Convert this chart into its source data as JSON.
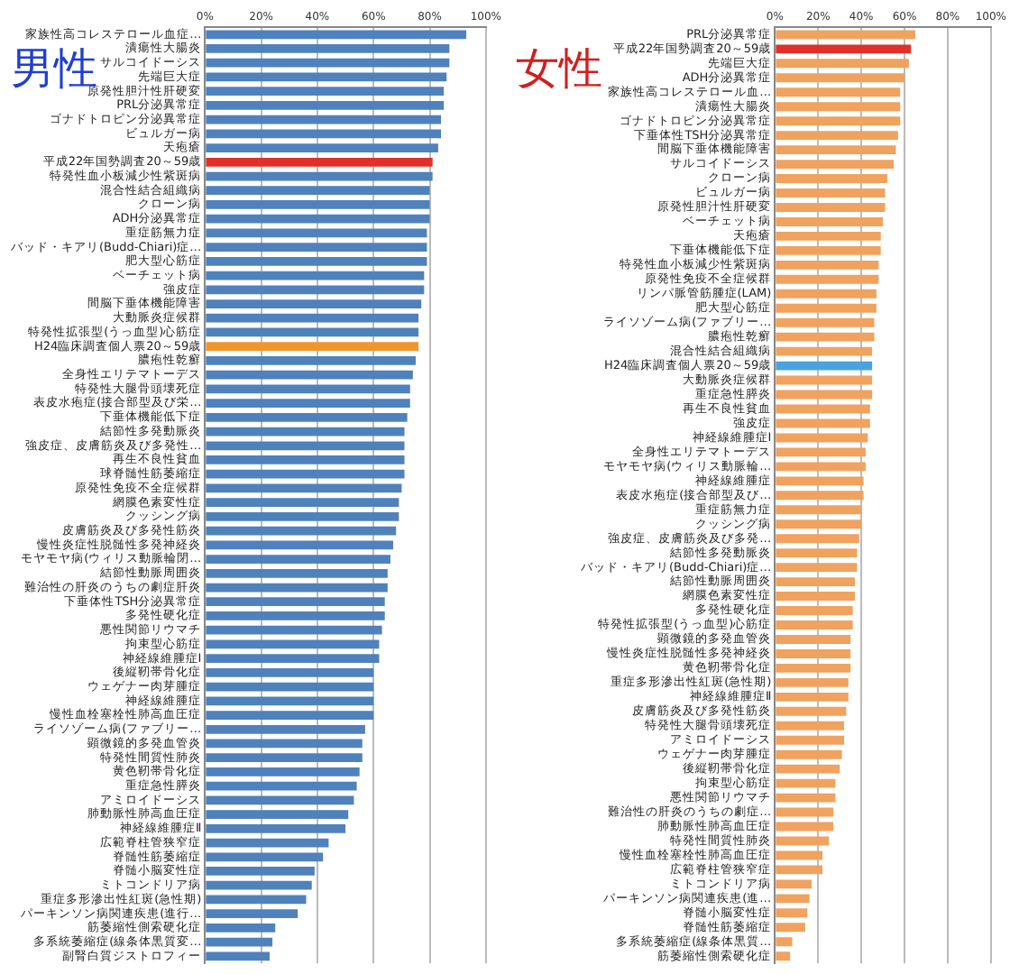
{
  "chart_data": [
    {
      "type": "bar",
      "title": "男性",
      "orientation": "horizontal",
      "legend": false,
      "grid": "x",
      "xlim": [
        0,
        100
      ],
      "xticks": [
        {
          "value": 0,
          "label": "0%"
        },
        {
          "value": 20,
          "label": "20%"
        },
        {
          "value": 40,
          "label": "40%"
        },
        {
          "value": 60,
          "label": "60%"
        },
        {
          "value": 80,
          "label": "80%"
        },
        {
          "value": 100,
          "label": "100%"
        }
      ],
      "categories": [
        "家族性高コレステロール血症…",
        "潰瘍性大腸炎",
        "サルコイドーシス",
        "先端巨大症",
        "原発性胆汁性肝硬変",
        "PRL分泌異常症",
        "ゴナドトロピン分泌異常症",
        "ビュルガー病",
        "天疱瘡",
        "平成22年国勢調査20～59歳",
        "特発性血小板減少性紫斑病",
        "混合性結合組織病",
        "クローン病",
        "ADH分泌異常症",
        "重症筋無力症",
        "バッド・キアリ(Budd-Chiari)症…",
        "肥大型心筋症",
        "ベーチェット病",
        "強皮症",
        "間脳下垂体機能障害",
        "大動脈炎症候群",
        "特発性拡張型(うっ血型)心筋症",
        "H24臨床調査個人票20～59歳",
        "膿疱性乾癬",
        "全身性エリテマトーデス",
        "特発性大腿骨頭壊死症",
        "表皮水疱症(接合部型及び栄…",
        "下垂体機能低下症",
        "結節性多発動脈炎",
        "強皮症、皮膚筋炎及び多発性…",
        "再生不良性貧血",
        "球脊髄性筋萎縮症",
        "原発性免疫不全症候群",
        "網膜色素変性症",
        "クッシング病",
        "皮膚筋炎及び多発性筋炎",
        "慢性炎症性脱髄性多発神経炎",
        "モヤモヤ病(ウィリス動脈輪閉…",
        "結節性動脈周囲炎",
        "難治性の肝炎のうちの劇症肝炎",
        "下垂体性TSH分泌異常症",
        "多発性硬化症",
        "悪性関節リウマチ",
        "拘束型心筋症",
        "神経線維腫症Ⅰ",
        "後縦靭帯骨化症",
        "ウェゲナー肉芽腫症",
        "神経線維腫症",
        "慢性血栓塞栓性肺高血圧症",
        "ライソゾーム病(ファブリー…",
        "顕微鏡的多発血管炎",
        "特発性間質性肺炎",
        "黄色靭帯骨化症",
        "重症急性膵炎",
        "アミロイドーシス",
        "肺動脈性肺高血圧症",
        "神経線維腫症Ⅱ",
        "広範脊柱管狭窄症",
        "脊髄性筋萎縮症",
        "脊髄小脳変性症",
        "ミトコンドリア病",
        "重症多形滲出性紅斑(急性期)",
        "パーキンソン病関連疾患(進行…",
        "筋萎縮性側索硬化症",
        "多系統萎縮症(線条体黒質変…",
        "副腎白質ジストロフィー"
      ],
      "values": [
        93,
        87,
        87,
        86,
        85,
        85,
        84,
        84,
        83,
        81,
        81,
        80,
        80,
        80,
        79,
        79,
        79,
        78,
        78,
        77,
        76,
        76,
        76,
        75,
        74,
        73,
        73,
        72,
        71,
        71,
        71,
        71,
        70,
        69,
        69,
        68,
        67,
        66,
        65,
        65,
        64,
        64,
        63,
        62,
        62,
        60,
        60,
        60,
        60,
        57,
        56,
        56,
        55,
        54,
        53,
        51,
        50,
        44,
        42,
        39,
        38,
        36,
        33,
        25,
        24,
        23
      ],
      "colors": [
        "#4f81bd",
        "#4f81bd",
        "#4f81bd",
        "#4f81bd",
        "#4f81bd",
        "#4f81bd",
        "#4f81bd",
        "#4f81bd",
        "#4f81bd",
        "#e0302a",
        "#4f81bd",
        "#4f81bd",
        "#4f81bd",
        "#4f81bd",
        "#4f81bd",
        "#4f81bd",
        "#4f81bd",
        "#4f81bd",
        "#4f81bd",
        "#4f81bd",
        "#4f81bd",
        "#4f81bd",
        "#f0962e",
        "#4f81bd",
        "#4f81bd",
        "#4f81bd",
        "#4f81bd",
        "#4f81bd",
        "#4f81bd",
        "#4f81bd",
        "#4f81bd",
        "#4f81bd",
        "#4f81bd",
        "#4f81bd",
        "#4f81bd",
        "#4f81bd",
        "#4f81bd",
        "#4f81bd",
        "#4f81bd",
        "#4f81bd",
        "#4f81bd",
        "#4f81bd",
        "#4f81bd",
        "#4f81bd",
        "#4f81bd",
        "#4f81bd",
        "#4f81bd",
        "#4f81bd",
        "#4f81bd",
        "#4f81bd",
        "#4f81bd",
        "#4f81bd",
        "#4f81bd",
        "#4f81bd",
        "#4f81bd",
        "#4f81bd",
        "#4f81bd",
        "#4f81bd",
        "#4f81bd",
        "#4f81bd",
        "#4f81bd",
        "#4f81bd",
        "#4f81bd",
        "#4f81bd",
        "#4f81bd",
        "#4f81bd"
      ]
    },
    {
      "type": "bar",
      "title": "女性",
      "orientation": "horizontal",
      "legend": false,
      "grid": "x",
      "xlim": [
        0,
        100
      ],
      "xticks": [
        {
          "value": 0,
          "label": "0%"
        },
        {
          "value": 20,
          "label": "20%"
        },
        {
          "value": 40,
          "label": "40%"
        },
        {
          "value": 60,
          "label": "60%"
        },
        {
          "value": 80,
          "label": "80%"
        },
        {
          "value": 100,
          "label": "100%"
        }
      ],
      "categories": [
        "PRL分泌異常症",
        "平成22年国勢調査20～59歳",
        "先端巨大症",
        "ADH分泌異常症",
        "家族性高コレステロール血…",
        "潰瘍性大腸炎",
        "ゴナドトロピン分泌異常症",
        "下垂体性TSH分泌異常症",
        "間脳下垂体機能障害",
        "サルコイドーシス",
        "クローン病",
        "ビュルガー病",
        "原発性胆汁性肝硬変",
        "ベーチェット病",
        "天疱瘡",
        "下垂体機能低下症",
        "特発性血小板減少性紫斑病",
        "原発性免疫不全症候群",
        "リンパ脈管筋腫症(LAM)",
        "肥大型心筋症",
        "ライソゾーム病(ファブリー…",
        "膿疱性乾癬",
        "混合性結合組織病",
        "H24臨床調査個人票20～59歳",
        "大動脈炎症候群",
        "重症急性膵炎",
        "再生不良性貧血",
        "強皮症",
        "神経線維腫症Ⅰ",
        "全身性エリテマトーデス",
        "モヤモヤ病(ウィリス動脈輪…",
        "神経線維腫症",
        "表皮水疱症(接合部型及び…",
        "重症筋無力症",
        "クッシング病",
        "強皮症、皮膚筋炎及び多発…",
        "結節性多発動脈炎",
        "バッド・キアリ(Budd-Chiari)症…",
        "結節性動脈周囲炎",
        "網膜色素変性症",
        "多発性硬化症",
        "特発性拡張型(うっ血型)心筋症",
        "顕微鏡的多発血管炎",
        "慢性炎症性脱髄性多発神経炎",
        "黄色靭帯骨化症",
        "重症多形滲出性紅斑(急性期)",
        "神経線維腫症Ⅱ",
        "皮膚筋炎及び多発性筋炎",
        "特発性大腿骨頭壊死症",
        "アミロイドーシス",
        "ウェゲナー肉芽腫症",
        "後縦靭帯骨化症",
        "拘束型心筋症",
        "悪性関節リウマチ",
        "難治性の肝炎のうちの劇症…",
        "肺動脈性肺高血圧症",
        "特発性間質性肺炎",
        "慢性血栓塞栓性肺高血圧症",
        "広範脊柱管狭窄症",
        "ミトコンドリア病",
        "パーキンソン病関連疾患(進…",
        "脊髄小脳変性症",
        "脊髄性筋萎縮症",
        "多系統萎縮症(線条体黒質…",
        "筋萎縮性側索硬化症"
      ],
      "values": [
        65,
        63,
        62,
        60,
        58,
        58,
        58,
        57,
        56,
        55,
        52,
        51,
        51,
        50,
        49,
        49,
        48,
        48,
        47,
        47,
        46,
        46,
        45,
        45,
        45,
        45,
        44,
        44,
        43,
        42,
        42,
        41,
        41,
        40,
        40,
        39,
        38,
        38,
        37,
        37,
        36,
        36,
        35,
        35,
        35,
        34,
        34,
        33,
        32,
        32,
        31,
        30,
        28,
        28,
        27,
        27,
        25,
        22,
        22,
        17,
        16,
        15,
        14,
        8,
        7
      ],
      "colors": [
        "#f0a25e",
        "#e0302a",
        "#f0a25e",
        "#f0a25e",
        "#f0a25e",
        "#f0a25e",
        "#f0a25e",
        "#f0a25e",
        "#f0a25e",
        "#f0a25e",
        "#f0a25e",
        "#f0a25e",
        "#f0a25e",
        "#f0a25e",
        "#f0a25e",
        "#f0a25e",
        "#f0a25e",
        "#f0a25e",
        "#f0a25e",
        "#f0a25e",
        "#f0a25e",
        "#f0a25e",
        "#f0a25e",
        "#4aa3df",
        "#f0a25e",
        "#f0a25e",
        "#f0a25e",
        "#f0a25e",
        "#f0a25e",
        "#f0a25e",
        "#f0a25e",
        "#f0a25e",
        "#f0a25e",
        "#f0a25e",
        "#f0a25e",
        "#f0a25e",
        "#f0a25e",
        "#f0a25e",
        "#f0a25e",
        "#f0a25e",
        "#f0a25e",
        "#f0a25e",
        "#f0a25e",
        "#f0a25e",
        "#f0a25e",
        "#f0a25e",
        "#f0a25e",
        "#f0a25e",
        "#f0a25e",
        "#f0a25e",
        "#f0a25e",
        "#f0a25e",
        "#f0a25e",
        "#f0a25e",
        "#f0a25e",
        "#f0a25e",
        "#f0a25e",
        "#f0a25e",
        "#f0a25e",
        "#f0a25e",
        "#f0a25e",
        "#f0a25e",
        "#f0a25e",
        "#f0a25e",
        "#f0a25e"
      ]
    }
  ]
}
